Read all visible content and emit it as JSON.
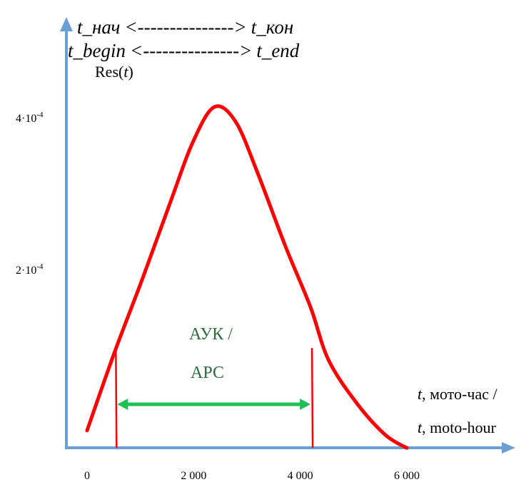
{
  "header": {
    "line1": {
      "left": "t_нач",
      "arrow": "<--------------->",
      "right": "t_кон"
    },
    "line2": {
      "left": "t_begin",
      "arrow": "<--------------->",
      "right": "t_end"
    }
  },
  "colors": {
    "axis": "#6a9fd4",
    "curve": "#ff0000",
    "interval": "#1fbf55",
    "interval_label": "#2e6b3f"
  },
  "chart_data": {
    "type": "line",
    "ylabel": "Res(t)",
    "ylabel_parts": {
      "name": "Res(",
      "var": "t",
      "close": ")"
    },
    "xlabel_ru": {
      "var": "t",
      "text": ", мото-час /"
    },
    "xlabel_en": {
      "var": "t",
      "text": ", moto-hour"
    },
    "x_ticks": [
      {
        "value": 0,
        "label": "0"
      },
      {
        "value": 2000,
        "label": "2 000"
      },
      {
        "value": 4000,
        "label": "4 000"
      },
      {
        "value": 6000,
        "label": "6 000"
      }
    ],
    "y_ticks": [
      {
        "value": 0.0002,
        "label": "2·10",
        "exp": "-4"
      },
      {
        "value": 0.0004,
        "label": "4·10",
        "exp": "-4"
      }
    ],
    "xlim": [
      0,
      8000
    ],
    "series": [
      {
        "name": "Res(t)",
        "x": [
          0,
          510,
          1045,
          1580,
          1980,
          2385,
          2785,
          3190,
          3720,
          4190,
          4530,
          5060,
          5600,
          6000
        ],
        "y": [
          -1.2e-05,
          9e-05,
          0.000189,
          0.000292,
          0.000367,
          0.000414,
          0.000395,
          0.000329,
          0.000231,
          0.000151,
          8.1e-05,
          2.4e-05,
          -1.8e-05,
          -3.5e-05
        ]
      }
    ],
    "interval": {
      "t_begin": 540,
      "t_end": 4220,
      "label_line1": "АУК /",
      "label_line2": "АРС"
    }
  }
}
